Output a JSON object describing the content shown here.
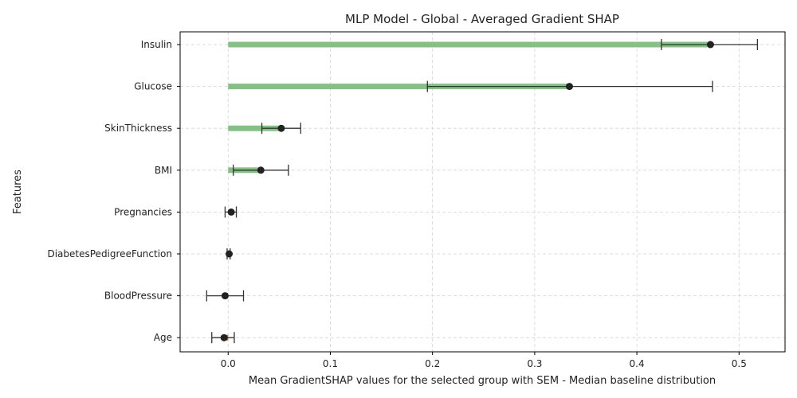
{
  "chart_data": {
    "type": "bar",
    "orientation": "horizontal",
    "title": "MLP Model - Global - Averaged Gradient SHAP",
    "xlabel": "Mean GradientSHAP values for the selected group with SEM - Median baseline distribution",
    "ylabel": "Features",
    "xlim": [
      -0.047,
      0.545
    ],
    "xticks": [
      0,
      0.1,
      0.2,
      0.3,
      0.4,
      0.5
    ],
    "xtick_labels": [
      "0.0",
      "0.1",
      "0.2",
      "0.3",
      "0.4",
      "0.5"
    ],
    "grid": true,
    "categories": [
      "Insulin",
      "Glucose",
      "SkinThickness",
      "BMI",
      "Pregnancies",
      "DiabetesPedigreeFunction",
      "BloodPressure",
      "Age"
    ],
    "values": [
      0.472,
      0.334,
      0.052,
      0.032,
      0.003,
      0.001,
      -0.003,
      -0.004
    ],
    "error_low": [
      0.424,
      0.195,
      0.033,
      0.005,
      -0.003,
      -0.001,
      -0.021,
      -0.016
    ],
    "error_high": [
      0.518,
      0.474,
      0.071,
      0.059,
      0.008,
      0.002,
      0.015,
      0.006
    ],
    "colors": {
      "positive": "#7cbf7c",
      "negative": "#d9534f",
      "point": "#222222",
      "errorbar": "#333333",
      "grid": "#d3d3d3"
    }
  }
}
